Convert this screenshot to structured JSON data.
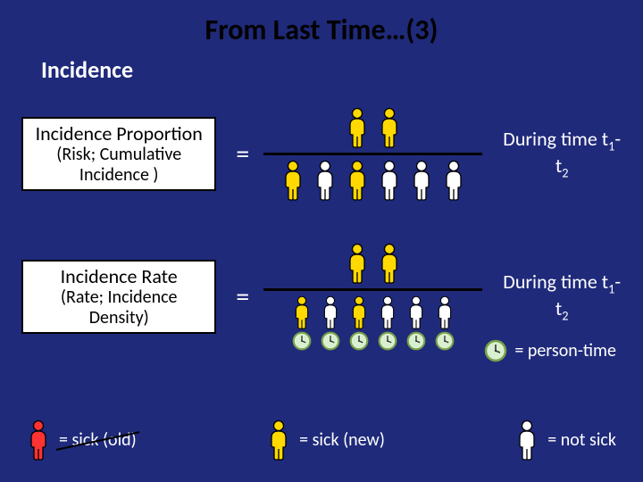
{
  "title": "From Last Time…(3)",
  "subtitle": "Incidence",
  "proportion": {
    "main": "Incidence Proportion",
    "sub": "(Risk; Cumulative Incidence )",
    "time_label_html": "During time t<sub>1</sub>-t<sub>2</sub>",
    "numerator": [
      {
        "fill": "#ffd900",
        "stroke": "#000"
      },
      {
        "fill": "#ffd900",
        "stroke": "#000"
      }
    ],
    "denominator": [
      {
        "fill": "#ffd900",
        "stroke": "#000"
      },
      {
        "fill": "#ffffff",
        "stroke": "#000"
      },
      {
        "fill": "#ffd900",
        "stroke": "#000"
      },
      {
        "fill": "#ffffff",
        "stroke": "#000"
      },
      {
        "fill": "#ffffff",
        "stroke": "#000"
      },
      {
        "fill": "#ffffff",
        "stroke": "#000"
      }
    ]
  },
  "rate": {
    "main": "Incidence Rate",
    "sub": "(Rate; Incidence Density)",
    "time_label_html": "During time t<sub>1</sub>-t<sub>2</sub>",
    "numerator": [
      {
        "fill": "#ffd900",
        "stroke": "#000"
      },
      {
        "fill": "#ffd900",
        "stroke": "#000"
      }
    ],
    "denominator": [
      {
        "fill": "#ffd900"
      },
      {
        "fill": "#ffffff"
      },
      {
        "fill": "#ffd900"
      },
      {
        "fill": "#ffffff"
      },
      {
        "fill": "#ffffff"
      },
      {
        "fill": "#ffffff"
      }
    ]
  },
  "legend": {
    "person_time": "= person-time",
    "sick_old": "= sick (old)",
    "sick_new": "= sick (new)",
    "not_sick": "= not sick",
    "clock_face": "#d9f0d0",
    "clock_rim": "#7aa04a",
    "sick_old_color": {
      "fill": "#ff3333",
      "stroke": "#000"
    },
    "sick_new_color": {
      "fill": "#ffd900",
      "stroke": "#000"
    },
    "not_sick_color": {
      "fill": "#ffffff",
      "stroke": "#000"
    }
  },
  "colors": {
    "background": "#1f2a7a",
    "text_white": "#ffffff",
    "text_black": "#000000",
    "box_bg": "#ffffff"
  }
}
